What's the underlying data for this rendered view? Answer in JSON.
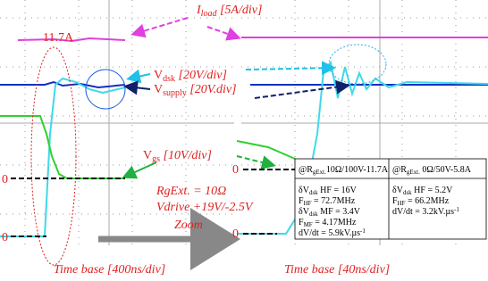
{
  "left_panel": {
    "zero_top": "0",
    "zero_bottom": "0",
    "load_value": "11.7A",
    "time_base": "Time base [400ns/div]"
  },
  "right_panel": {
    "zero_top": "0",
    "zero_bottom": "0",
    "time_base": "Time base [40ns/div]"
  },
  "labels": {
    "i_load": {
      "symbol": "I",
      "sub": "load",
      "scale": " [5A/div]"
    },
    "v_dsk": {
      "symbol": "V",
      "sub": "dsk",
      "scale": " [20V/div]"
    },
    "v_supply": {
      "symbol": "V",
      "sub": "supply",
      "scale": " [20V.div]"
    },
    "v_gs": {
      "symbol": "V",
      "sub": "gs",
      "scale": " [10V/div]"
    },
    "rg_ext": "RgExt. = 10Ω",
    "vdrive": "Vdrive +19V/-2.5V",
    "zoom": "Zoom"
  },
  "table": {
    "left_header": {
      "text": "@R",
      "sub": "gExt.",
      "rest": "10Ω/100V-11.7A"
    },
    "right_header": {
      "text": "@R",
      "sub": "gExt.",
      "rest": " 0Ω/50V-5.8A"
    },
    "left_rows": [
      {
        "text": "δV",
        "sub": "dsk",
        "rest": " HF = 16V"
      },
      {
        "text": "F",
        "sub": "HF",
        "rest": " = 72.7MHz"
      },
      {
        "text": "δV",
        "sub": "dsk",
        "rest": " MF = 3.4V"
      },
      {
        "text": "F",
        "sub": "MF",
        "rest": " = 4.17MHz"
      },
      {
        "text": "dV/dt = 5.9kV.µs",
        "sup": "-1"
      }
    ],
    "right_rows": [
      {
        "text": "δV",
        "sub": "dsk",
        "rest": " HF = 5.2V"
      },
      {
        "text": "F",
        "sub": "HF",
        "rest": " = 66.2MHz"
      },
      {
        "text": "dV/dt = 3.2kV.µs",
        "sup": "-1"
      }
    ]
  }
}
